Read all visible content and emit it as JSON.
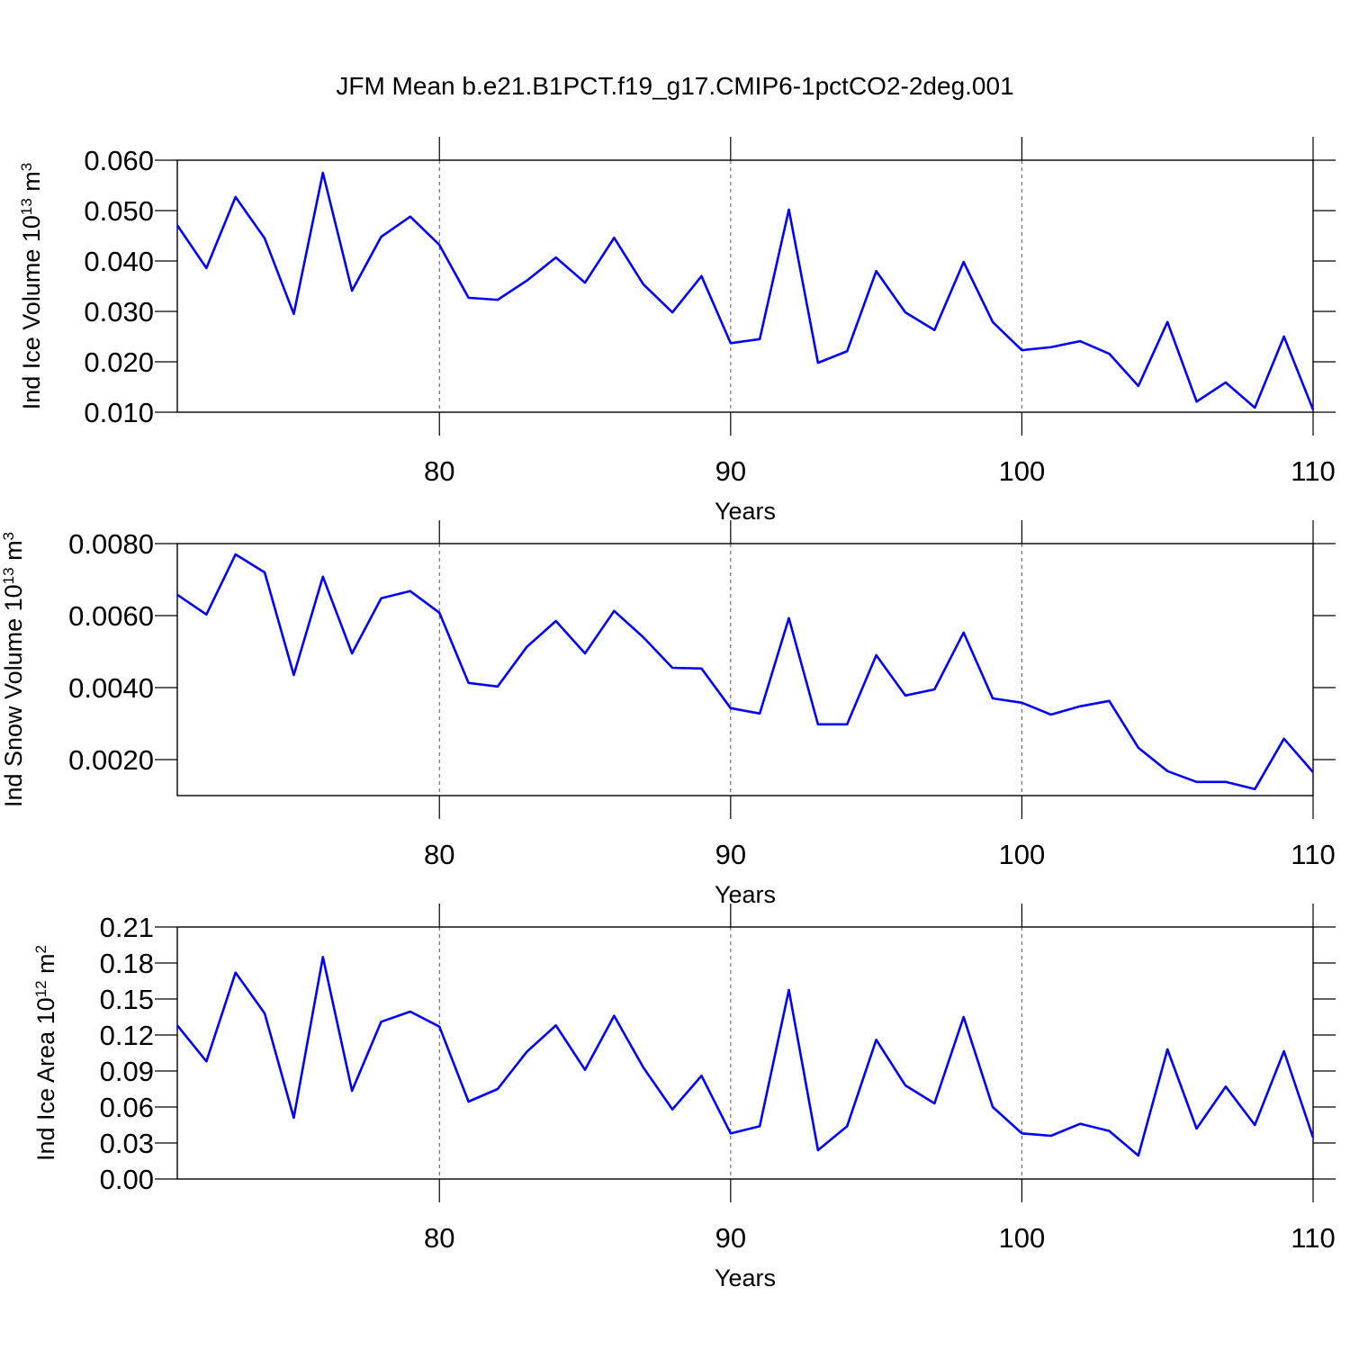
{
  "title": "JFM Mean b.e21.B1PCT.f19_g17.CMIP6-1pctCO2-2deg.001",
  "chart_data": [
    {
      "type": "line",
      "xlabel": "Years",
      "ylabel": [
        "Ind Ice Volume 10",
        "13",
        " m",
        "3"
      ],
      "x": [
        71,
        72,
        73,
        74,
        75,
        76,
        77,
        78,
        79,
        80,
        81,
        82,
        83,
        84,
        85,
        86,
        87,
        88,
        89,
        90,
        91,
        92,
        93,
        94,
        95,
        96,
        97,
        98,
        99,
        100,
        101,
        102,
        103,
        104,
        105,
        106,
        107,
        108,
        109,
        110
      ],
      "series": [
        {
          "color": "#0000ff",
          "values": [
            0.0471,
            0.0386,
            0.0527,
            0.0445,
            0.0295,
            0.0575,
            0.0341,
            0.0448,
            0.0488,
            0.0432,
            0.0327,
            0.0323,
            0.0361,
            0.0407,
            0.0357,
            0.0446,
            0.0354,
            0.0298,
            0.037,
            0.0237,
            0.0245,
            0.0502,
            0.0198,
            0.0221,
            0.038,
            0.0298,
            0.0263,
            0.0398,
            0.0279,
            0.0223,
            0.0229,
            0.0241,
            0.0216,
            0.0152,
            0.0279,
            0.0121,
            0.0159,
            0.0109,
            0.025,
            0.0105
          ]
        }
      ],
      "xlim": [
        71,
        110
      ],
      "xticks": [
        80,
        90,
        100,
        110
      ],
      "ylim": [
        0.01,
        0.06
      ],
      "yticks": [
        {
          "value": 0.01,
          "label": "0.010"
        },
        {
          "value": 0.02,
          "label": "0.020"
        },
        {
          "value": 0.03,
          "label": "0.030"
        },
        {
          "value": 0.04,
          "label": "0.040"
        },
        {
          "value": 0.05,
          "label": "0.050"
        },
        {
          "value": 0.06,
          "label": "0.060"
        }
      ],
      "grid": "x"
    },
    {
      "type": "line",
      "xlabel": "Years",
      "ylabel": [
        "Ind Snow Volume 10",
        "13",
        " m",
        "3"
      ],
      "x": [
        71,
        72,
        73,
        74,
        75,
        76,
        77,
        78,
        79,
        80,
        81,
        82,
        83,
        84,
        85,
        86,
        87,
        88,
        89,
        90,
        91,
        92,
        93,
        94,
        95,
        96,
        97,
        98,
        99,
        100,
        101,
        102,
        103,
        104,
        105,
        106,
        107,
        108,
        109,
        110
      ],
      "series": [
        {
          "color": "#0000ff",
          "values": [
            0.00658,
            0.00603,
            0.0077,
            0.0072,
            0.00435,
            0.00708,
            0.00495,
            0.00648,
            0.00668,
            0.00608,
            0.00413,
            0.00403,
            0.00513,
            0.00585,
            0.00495,
            0.00613,
            0.0054,
            0.00455,
            0.00453,
            0.00343,
            0.00328,
            0.00593,
            0.00298,
            0.00298,
            0.0049,
            0.00378,
            0.00395,
            0.00553,
            0.0037,
            0.00358,
            0.00325,
            0.00348,
            0.00363,
            0.00233,
            0.00168,
            0.00138,
            0.00138,
            0.00118,
            0.00258,
            0.00165
          ]
        }
      ],
      "xlim": [
        71,
        110
      ],
      "xticks": [
        80,
        90,
        100,
        110
      ],
      "ylim": [
        0.001,
        0.008
      ],
      "yticks": [
        {
          "value": 0.002,
          "label": "0.0020"
        },
        {
          "value": 0.004,
          "label": "0.0040"
        },
        {
          "value": 0.006,
          "label": "0.0060"
        },
        {
          "value": 0.008,
          "label": "0.0080"
        }
      ],
      "grid": "x"
    },
    {
      "type": "line",
      "xlabel": "Years",
      "ylabel": [
        "Ind Ice Area 10",
        "12",
        " m",
        "2"
      ],
      "x": [
        71,
        72,
        73,
        74,
        75,
        76,
        77,
        78,
        79,
        80,
        81,
        82,
        83,
        84,
        85,
        86,
        87,
        88,
        89,
        90,
        91,
        92,
        93,
        94,
        95,
        96,
        97,
        98,
        99,
        100,
        101,
        102,
        103,
        104,
        105,
        106,
        107,
        108,
        109,
        110
      ],
      "series": [
        {
          "color": "#0000ff",
          "values": [
            0.128,
            0.098,
            0.172,
            0.138,
            0.051,
            0.185,
            0.0735,
            0.131,
            0.1395,
            0.127,
            0.0645,
            0.075,
            0.106,
            0.128,
            0.091,
            0.136,
            0.093,
            0.058,
            0.086,
            0.038,
            0.044,
            0.1575,
            0.024,
            0.044,
            0.116,
            0.078,
            0.063,
            0.135,
            0.06,
            0.038,
            0.036,
            0.046,
            0.04,
            0.0195,
            0.108,
            0.042,
            0.077,
            0.045,
            0.1065,
            0.0345
          ]
        }
      ],
      "xlim": [
        71,
        110
      ],
      "xticks": [
        80,
        90,
        100,
        110
      ],
      "ylim": [
        0,
        0.21
      ],
      "yticks": [
        {
          "value": 0,
          "label": "0.00"
        },
        0.03,
        0.06,
        0.09,
        0.12,
        0.15,
        0.18,
        0.21
      ],
      "grid": "x"
    }
  ]
}
